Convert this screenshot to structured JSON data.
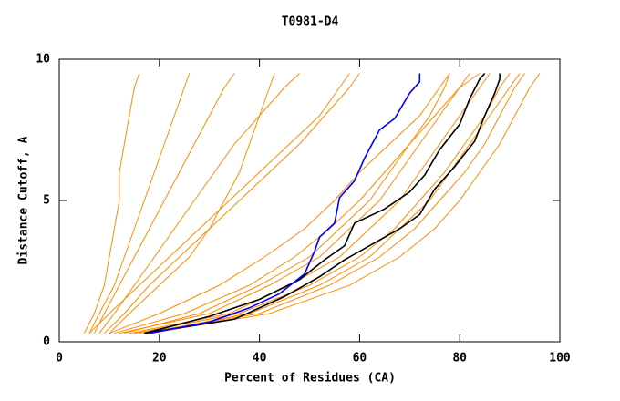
{
  "chart_data": {
    "type": "line",
    "title": "T0981-D4",
    "xlabel": "Percent of Residues (CA)",
    "ylabel": "Distance Cutoff, A",
    "xlim": [
      0,
      100
    ],
    "ylim": [
      0,
      10
    ],
    "xticks": [
      0,
      20,
      40,
      60,
      80,
      100
    ],
    "yticks": [
      0,
      5,
      10
    ],
    "series": [
      {
        "color": "#ff8c00",
        "x": [
          5,
          7,
          9,
          10,
          11,
          12,
          12,
          13,
          14,
          15,
          16
        ],
        "values": [
          0.3,
          1,
          2,
          3,
          4,
          5,
          6,
          7,
          8,
          9,
          9.5
        ]
      },
      {
        "color": "#ff8c00",
        "x": [
          6,
          8,
          11,
          13,
          15,
          17,
          19,
          21,
          23,
          25,
          26
        ],
        "values": [
          0.3,
          1,
          2,
          3,
          4,
          5,
          6,
          7,
          8,
          9,
          9.5
        ]
      },
      {
        "color": "#ff8c00",
        "x": [
          7,
          9,
          12,
          15,
          18,
          21,
          24,
          27,
          30,
          33,
          35
        ],
        "values": [
          0.3,
          1,
          2,
          3,
          4,
          5,
          6,
          7,
          8,
          9,
          9.5
        ]
      },
      {
        "color": "#ff8c00",
        "x": [
          8,
          11,
          15,
          19,
          23,
          27,
          31,
          35,
          40,
          45,
          48
        ],
        "values": [
          0.3,
          1,
          2,
          3,
          4,
          5,
          6,
          7,
          8,
          9,
          9.5
        ]
      },
      {
        "color": "#ff8c00",
        "x": [
          9,
          13,
          18,
          24,
          30,
          36,
          42,
          48,
          53,
          58,
          60
        ],
        "values": [
          0.3,
          1,
          2,
          3,
          4,
          5,
          6,
          7,
          8,
          9,
          9.5
        ]
      },
      {
        "color": "#ff8c00",
        "x": [
          10,
          20,
          32,
          41,
          49,
          55,
          60,
          66,
          72,
          76,
          78
        ],
        "values": [
          0.3,
          1,
          2,
          3,
          4,
          5,
          6,
          7,
          8,
          9,
          9.5
        ]
      },
      {
        "color": "#ff8c00",
        "x": [
          12,
          30,
          42,
          52,
          58,
          64,
          68,
          72,
          76,
          80,
          82
        ],
        "values": [
          0.3,
          1,
          2,
          3,
          4,
          5,
          6,
          7,
          8,
          9,
          9.5
        ]
      },
      {
        "color": "#ff8c00",
        "x": [
          14,
          34,
          46,
          56,
          62,
          68,
          72,
          76,
          80,
          84,
          86
        ],
        "values": [
          0.3,
          1,
          2,
          3,
          4,
          5,
          6,
          7,
          8,
          9,
          9.5
        ]
      },
      {
        "color": "#ff8c00",
        "x": [
          15,
          36,
          50,
          60,
          67,
          72,
          77,
          81,
          85,
          88,
          90
        ],
        "values": [
          0.3,
          1,
          2,
          3,
          4,
          5,
          6,
          7,
          8,
          9,
          9.5
        ]
      },
      {
        "color": "#ff8c00",
        "x": [
          16,
          40,
          54,
          64,
          71,
          76,
          81,
          85,
          88,
          91,
          93
        ],
        "values": [
          0.3,
          1,
          2,
          3,
          4,
          5,
          6,
          7,
          8,
          9,
          9.5
        ]
      },
      {
        "color": "#ff8c00",
        "x": [
          18,
          42,
          58,
          68,
          75,
          80,
          84,
          88,
          91,
          94,
          96
        ],
        "values": [
          0.3,
          1,
          2,
          3,
          4,
          5,
          6,
          7,
          8,
          9,
          9.5
        ]
      },
      {
        "color": "#ff8c00",
        "x": [
          13,
          28,
          40,
          50,
          56,
          62,
          66,
          70,
          74,
          77,
          78
        ],
        "values": [
          0.3,
          1,
          2,
          3,
          4,
          5,
          6,
          7,
          8,
          9,
          9.5
        ]
      },
      {
        "color": "#ff8c00",
        "x": [
          11,
          25,
          38,
          47,
          54,
          60,
          65,
          70,
          75,
          80,
          84
        ],
        "values": [
          0.3,
          1,
          2,
          3,
          4,
          5,
          6,
          7,
          8,
          9,
          9.5
        ]
      },
      {
        "color": "#ff8c00",
        "x": [
          6,
          10,
          16,
          22,
          28,
          34,
          40,
          46,
          52,
          56,
          58
        ],
        "values": [
          0.3,
          1,
          2,
          3,
          4,
          5,
          6,
          7,
          8,
          9,
          9.5
        ]
      },
      {
        "color": "#ff8c00",
        "x": [
          17,
          38,
          52,
          62,
          68,
          74,
          78,
          82,
          86,
          90,
          92
        ],
        "values": [
          0.3,
          1,
          2,
          3,
          4,
          5,
          6,
          7,
          8,
          9,
          9.5
        ]
      },
      {
        "color": "#ff8c00",
        "x": [
          10,
          14,
          20,
          26,
          30,
          33,
          36,
          38,
          40,
          42,
          43
        ],
        "values": [
          0.3,
          1,
          2,
          3,
          4,
          5,
          6,
          7,
          8,
          9,
          9.5
        ]
      },
      {
        "color": "#000000",
        "x": [
          17,
          30,
          40,
          48,
          53,
          57,
          59,
          65,
          70,
          73,
          76,
          80,
          82,
          84,
          85
        ],
        "values": [
          0.3,
          0.9,
          1.5,
          2.2,
          2.9,
          3.4,
          4.2,
          4.7,
          5.3,
          5.9,
          6.8,
          7.7,
          8.6,
          9.3,
          9.5
        ]
      },
      {
        "color": "#000000",
        "x": [
          17,
          35,
          45,
          52,
          57,
          62,
          68,
          72,
          75,
          79,
          83,
          85,
          87,
          88,
          88
        ],
        "values": [
          0.3,
          0.8,
          1.6,
          2.3,
          2.9,
          3.4,
          4.0,
          4.5,
          5.4,
          6.2,
          7.1,
          8.0,
          8.8,
          9.3,
          9.5
        ]
      },
      {
        "color": "#0000ff",
        "x": [
          18,
          30,
          38,
          44,
          49,
          51,
          52,
          55,
          56,
          59,
          61,
          64,
          67,
          70,
          72,
          72
        ],
        "values": [
          0.3,
          0.7,
          1.2,
          1.7,
          2.4,
          3.2,
          3.7,
          4.2,
          5.1,
          5.7,
          6.5,
          7.5,
          7.9,
          8.8,
          9.2,
          9.5
        ]
      }
    ]
  }
}
